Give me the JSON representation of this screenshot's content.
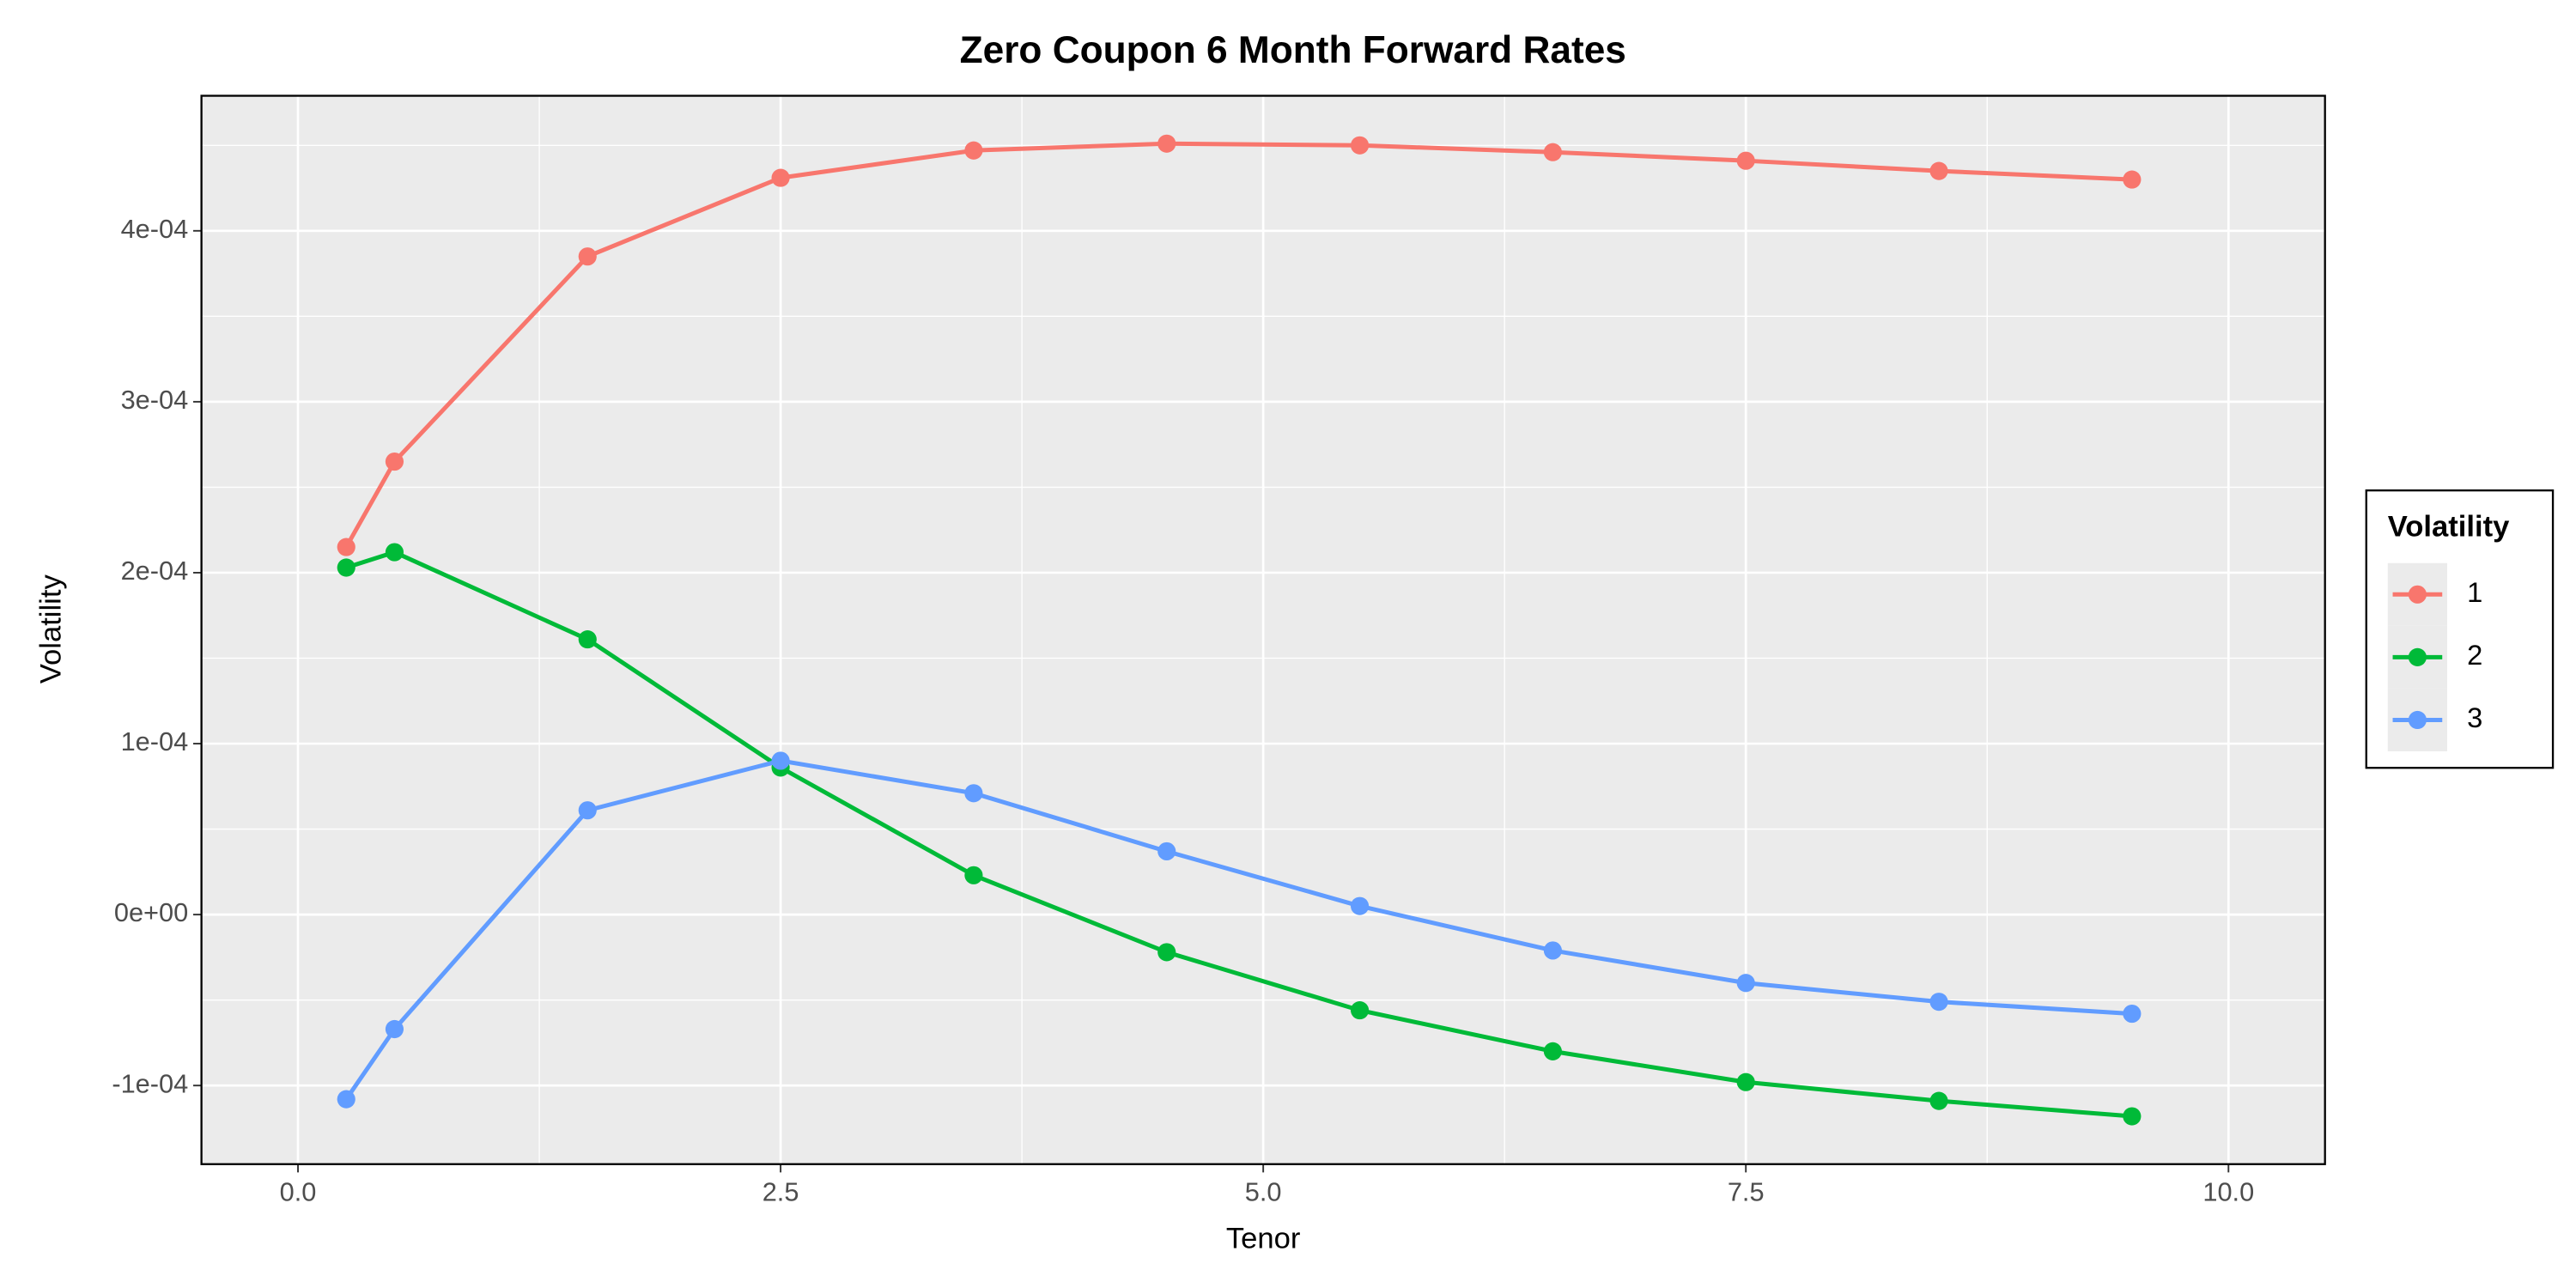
{
  "chart_data": {
    "type": "line",
    "title": "Zero Coupon 6 Month Forward Rates",
    "xlabel": "Tenor",
    "ylabel": "Volatility",
    "legend_title": "Volatility",
    "legend_position": "right",
    "grid": true,
    "x": [
      0.25,
      0.5,
      1.5,
      2.5,
      3.5,
      4.5,
      5.5,
      6.5,
      7.5,
      8.5,
      9.5
    ],
    "series": [
      {
        "name": "1",
        "color": "#F8766D",
        "values": [
          0.000215,
          0.000265,
          0.000385,
          0.000431,
          0.000447,
          0.000451,
          0.00045,
          0.000446,
          0.000441,
          0.000435,
          0.00043
        ]
      },
      {
        "name": "2",
        "color": "#00BA38",
        "values": [
          0.000203,
          0.000212,
          0.000161,
          8.6e-05,
          2.3e-05,
          -2.2e-05,
          -5.6e-05,
          -8e-05,
          -9.8e-05,
          -0.000109,
          -0.000118
        ]
      },
      {
        "name": "3",
        "color": "#619CFF",
        "values": [
          -0.000108,
          -6.7e-05,
          6.1e-05,
          9e-05,
          7.1e-05,
          3.7e-05,
          5e-06,
          -2.1e-05,
          -4e-05,
          -5.1e-05,
          -5.8e-05
        ]
      }
    ],
    "xlim": [
      -0.5,
      10.5
    ],
    "ylim": [
      -0.000146,
      0.000479
    ],
    "xticks": [
      {
        "value": 0,
        "label": "0.0"
      },
      2.5,
      {
        "value": 5,
        "label": "5.0"
      },
      7.5,
      {
        "value": 10,
        "label": "10.0"
      }
    ],
    "yticks": [
      {
        "value": -0.0001,
        "label": "-1e-04"
      },
      {
        "value": 0,
        "label": "0e+00"
      },
      {
        "value": 0.0001,
        "label": "1e-04"
      },
      {
        "value": 0.0002,
        "label": "2e-04"
      },
      {
        "value": 0.0003,
        "label": "3e-04"
      },
      {
        "value": 0.0004,
        "label": "4e-04"
      }
    ]
  }
}
